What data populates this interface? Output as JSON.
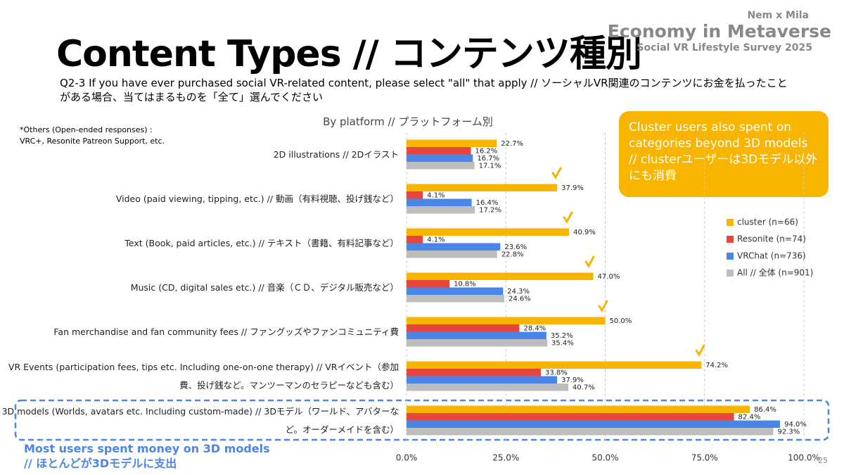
{
  "brand": {
    "top": "Nem x Mila",
    "name": "Economy in Metaverse",
    "survey": "Social VR Lifestyle Survey 2025"
  },
  "title": "Content Types // コンテンツ種別",
  "question": "Q2-3 If you have ever purchased social VR-related content, please select \"all\" that apply // ソーシャルVR関連のコンテンツにお金を払ったことがある場合、当てはまるものを「全て」選んでください",
  "note": [
    "*Others (Open-ended responses) :",
    "VRC+, Resonite Patreon Support, etc."
  ],
  "callout": "Cluster users also spent on categories beyond 3D models // clusterユーザーは3Dモデル以外にも消費",
  "annotation": [
    "Most users spent money on 3D models",
    "// ほとんどが3Dモデルに支出"
  ],
  "page_number": "25",
  "chart_data": {
    "type": "bar",
    "orientation": "horizontal",
    "subtitle": "By platform // プラットフォーム別",
    "categories": [
      "2D illustrations // 2Dイラスト",
      "Video (paid viewing, tipping, etc.) // 動画（有料視聴、投げ銭など）",
      "Text (Book, paid articles, etc.) // テキスト（書籍、有料記事など）",
      "Music (CD, digital sales etc.) // 音楽（ＣＤ、デジタル販売など）",
      "Fan merchandise and fan community fees // ファングッズやファンコミュニティ費",
      "VR Events (participation fees, tips etc. Including one-on-one therapy) // VRイベント（参加費、投げ銭など。マンツーマンのセラピーなども含む）",
      "3D models (Worlds, avatars etc. Including custom-made) // 3Dモデル（ワールド、アバターなど。オーダーメイドを含む）"
    ],
    "series": [
      {
        "name": "cluster (n=66)",
        "color": "#f7b500",
        "values": [
          22.7,
          37.9,
          40.9,
          47.0,
          50.0,
          74.2,
          86.4
        ],
        "value_labels": [
          "22.7%",
          "37.9%",
          "40.9%",
          "47.0%",
          "50.0%",
          "74.2%",
          "86.4%"
        ]
      },
      {
        "name": "Resonite (n=74)",
        "color": "#e8453c",
        "values": [
          16.2,
          4.1,
          4.1,
          10.8,
          28.4,
          33.8,
          82.4
        ],
        "value_labels": [
          "16.2%",
          "4.1%",
          "4.1%",
          "10.8%",
          "28.4%",
          "33.8%",
          "82.4%"
        ]
      },
      {
        "name": "VRChat (n=736)",
        "color": "#4a86e8",
        "values": [
          16.7,
          16.4,
          23.6,
          24.3,
          35.2,
          37.9,
          94.0
        ],
        "value_labels": [
          "16.7%",
          "16.4%",
          "23.6%",
          "24.3%",
          "35.2%",
          "37.9%",
          "94.0%"
        ]
      },
      {
        "name": "All // 全体 (n=901)",
        "color": "#bdbdbd",
        "values": [
          17.1,
          17.2,
          22.8,
          24.6,
          35.4,
          40.7,
          92.3
        ],
        "value_labels": [
          "17.1%",
          "17.2%",
          "22.8%",
          "24.6%",
          "35.4%",
          "40.7%",
          "92.3%"
        ]
      }
    ],
    "xlim": [
      0,
      100
    ],
    "xticks": [
      {
        "value": 0,
        "label": "0.0%"
      },
      {
        "value": 25,
        "label": "25.0%"
      },
      {
        "value": 50,
        "label": "50.0%"
      },
      {
        "value": 75,
        "label": "75.0%"
      },
      {
        "value": 100,
        "label": "100.0%"
      }
    ],
    "grid": true,
    "legend": "right"
  }
}
